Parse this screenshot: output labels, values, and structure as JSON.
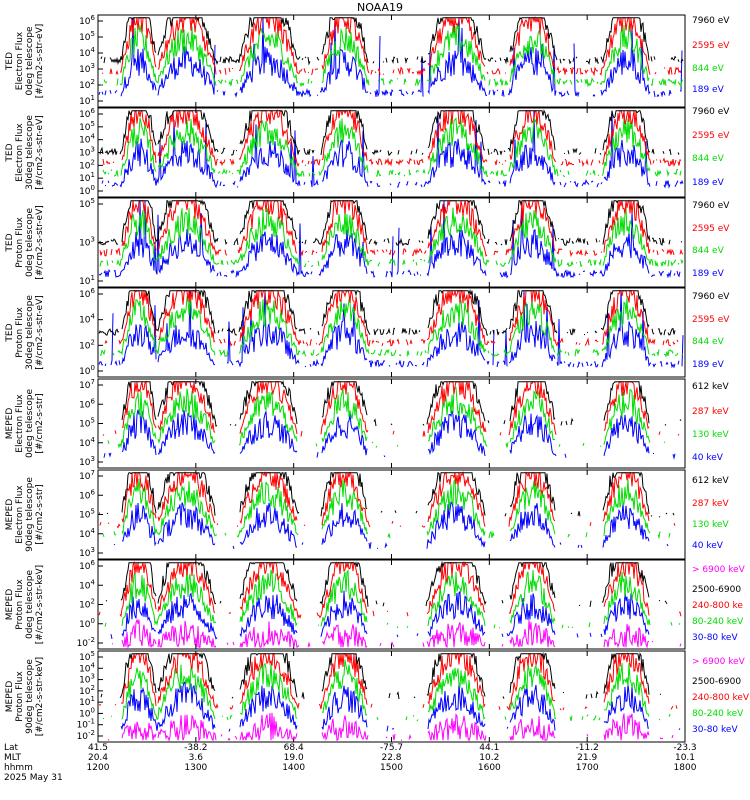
{
  "title": "NOAA19",
  "chart_data": [
    {
      "type": "line",
      "ylabel": [
        "TED",
        "Electron Flux",
        "0deg telescope",
        "[#/cm2-s-str-eV]"
      ],
      "y_log": true,
      "ylim_exp": [
        0,
        6
      ],
      "ytick_labels": [
        "10^1",
        "10^2",
        "10^3",
        "10^4",
        "10^5",
        "10^6"
      ],
      "legend": [
        {
          "label": "7960 eV",
          "color": "#000000"
        },
        {
          "label": "2595 eV",
          "color": "#ff0000"
        },
        {
          "label": "844 eV",
          "color": "#00dd00"
        },
        {
          "label": "189 eV",
          "color": "#0000ff"
        }
      ]
    },
    {
      "type": "line",
      "ylabel": [
        "TED",
        "Electron Flux",
        "30deg telescope",
        "[#/cm2-s-str-eV]"
      ],
      "y_log": true,
      "ylim_exp": [
        0,
        6
      ],
      "ytick_labels": [
        "10^0",
        "10^1",
        "10^2",
        "10^3",
        "10^4",
        "10^5",
        "10^6"
      ],
      "legend": [
        {
          "label": "7960 eV",
          "color": "#000000"
        },
        {
          "label": "2595 eV",
          "color": "#ff0000"
        },
        {
          "label": "844 eV",
          "color": "#00dd00"
        },
        {
          "label": "189 eV",
          "color": "#0000ff"
        }
      ]
    },
    {
      "type": "line",
      "ylabel": [
        "TED",
        "Proton Flux",
        "0deg telescope",
        "[#/cm2-s-str-eV]"
      ],
      "y_log": true,
      "ylim_exp": [
        0,
        5
      ],
      "ytick_labels": [
        "10^1",
        "10^3",
        "10^5"
      ],
      "legend": [
        {
          "label": "7960 eV",
          "color": "#000000"
        },
        {
          "label": "2595 eV",
          "color": "#ff0000"
        },
        {
          "label": "844 eV",
          "color": "#00dd00"
        },
        {
          "label": "189 eV",
          "color": "#0000ff"
        }
      ]
    },
    {
      "type": "line",
      "ylabel": [
        "TED",
        "Proton Flux",
        "30deg telescope",
        "[#/cm2-s-str-eV]"
      ],
      "y_log": true,
      "ylim_exp": [
        0,
        6
      ],
      "ytick_labels": [
        "10^0",
        "10^2",
        "10^4",
        "10^6"
      ],
      "legend": [
        {
          "label": "7960 eV",
          "color": "#000000"
        },
        {
          "label": "2595 eV",
          "color": "#ff0000"
        },
        {
          "label": "844 eV",
          "color": "#00dd00"
        },
        {
          "label": "189 eV",
          "color": "#0000ff"
        }
      ]
    },
    {
      "type": "line",
      "ylabel": [
        "MEPED",
        "Electron Flux",
        "0deg telescope",
        "[#/cm2-s-str]"
      ],
      "y_log": true,
      "ylim_exp": [
        3,
        7
      ],
      "ytick_labels": [
        "10^3",
        "10^4",
        "10^5",
        "10^6",
        "10^7"
      ],
      "legend": [
        {
          "label": "612 keV",
          "color": "#000000"
        },
        {
          "label": "287 keV",
          "color": "#ff0000"
        },
        {
          "label": "130 keV",
          "color": "#00dd00"
        },
        {
          "label": "40 keV",
          "color": "#0000ff"
        }
      ]
    },
    {
      "type": "line",
      "ylabel": [
        "MEPED",
        "Electron Flux",
        "90deg telescope",
        "[#/cm2-s-str]"
      ],
      "y_log": true,
      "ylim_exp": [
        2,
        7
      ],
      "ytick_labels": [
        "10^3",
        "10^4",
        "10^5",
        "10^6",
        "10^7"
      ],
      "legend": [
        {
          "label": "612 keV",
          "color": "#000000"
        },
        {
          "label": "287 keV",
          "color": "#ff0000"
        },
        {
          "label": "130 keV",
          "color": "#00dd00"
        },
        {
          "label": "40 keV",
          "color": "#0000ff"
        }
      ]
    },
    {
      "type": "line",
      "ylabel": [
        "MEPED",
        "Proton Flux",
        "0deg telescope",
        "[#/cm2-s-str-keV]"
      ],
      "y_log": true,
      "ylim_exp": [
        -2,
        6
      ],
      "ytick_labels": [
        "10^-2",
        "10^0",
        "10^2",
        "10^4",
        "10^6"
      ],
      "legend": [
        {
          "label": "> 6900 keV",
          "color": "#ff00ff"
        },
        {
          "label": "2500-6900",
          "color": "#000000"
        },
        {
          "label": "240-800 ke",
          "color": "#ff0000"
        },
        {
          "label": "80-240 keV",
          "color": "#00dd00"
        },
        {
          "label": "30-80 keV",
          "color": "#0000ff"
        }
      ]
    },
    {
      "type": "line",
      "ylabel": [
        "MEPED",
        "Proton Flux",
        "90deg telescope",
        "[#/cm2-s-str-keV]"
      ],
      "y_log": true,
      "ylim_exp": [
        -2,
        6
      ],
      "ytick_labels": [
        "10^-2",
        "10^-1",
        "10^0",
        "10^1",
        "10^2",
        "10^3",
        "10^4",
        "10^5"
      ],
      "legend": [
        {
          "label": "> 6900 keV",
          "color": "#ff00ff"
        },
        {
          "label": "2500-6900",
          "color": "#000000"
        },
        {
          "label": "240-800 keV",
          "color": "#ff0000"
        },
        {
          "label": "80-240 keV",
          "color": "#00dd00"
        },
        {
          "label": "30-80 keV",
          "color": "#0000ff"
        }
      ]
    }
  ],
  "x_axis": {
    "row_labels": [
      "Lat",
      "MLT",
      "hhmm",
      "2025 May 31"
    ],
    "columns": [
      {
        "lat": "41.5",
        "mlt": "20.4",
        "hhmm": "1200"
      },
      {
        "lat": "-38.2",
        "mlt": "3.6",
        "hhmm": "1300"
      },
      {
        "lat": "68.4",
        "mlt": "19.0",
        "hhmm": "1400"
      },
      {
        "lat": "-75.7",
        "mlt": "22.8",
        "hhmm": "1500"
      },
      {
        "lat": "44.1",
        "mlt": "10.2",
        "hhmm": "1600"
      },
      {
        "lat": "-11.2",
        "mlt": "21.9",
        "hhmm": "1700"
      },
      {
        "lat": "-23.3",
        "mlt": "10.1",
        "hhmm": "1800"
      }
    ],
    "range_hhmm": [
      "1200",
      "1800"
    ]
  }
}
